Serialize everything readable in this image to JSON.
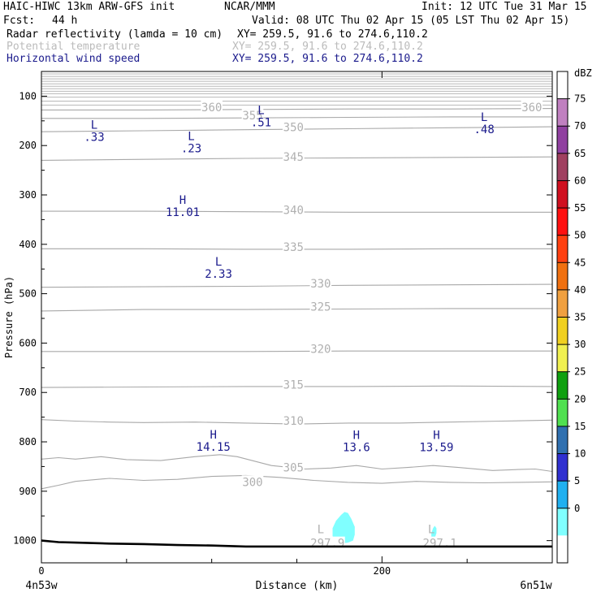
{
  "header": {
    "model": "HAIC-HIWC 13km ARW-GFS init",
    "org": "NCAR/MMM",
    "init": "Init: 12 UTC Tue 31 Mar 15",
    "fcst_label": "Fcst:",
    "fcst_value": "44 h",
    "valid": "Valid: 08 UTC Thu 02 Apr 15 (05 LST Thu 02 Apr 15)",
    "fields": [
      {
        "name": "Radar reflectivity (lamda = 10 cm)",
        "xy": "XY= 259.5, 91.6 to 274.6,110.2",
        "color": "#000000"
      },
      {
        "name": "Potential temperature",
        "xy": "XY= 259.5, 91.6 to 274.6,110.2",
        "color": "#bbbbbb"
      },
      {
        "name": "Horizontal wind speed",
        "xy": "XY= 259.5, 91.6 to 274.6,110.2",
        "color": "#1a1a8c"
      }
    ]
  },
  "chart_data": {
    "type": "cross-section",
    "xlabel": "Distance (km)",
    "ylabel": "Pressure (hPa)",
    "xlim": [
      0,
      300
    ],
    "ylim": [
      1045,
      50
    ],
    "x_ticks": [
      0,
      200
    ],
    "x_tick_labels": [
      "0",
      "200"
    ],
    "x_endpoint_labels": [
      "4n53w",
      "6n51w"
    ],
    "y_ticks": [
      100,
      200,
      300,
      400,
      500,
      600,
      700,
      800,
      900,
      1000
    ],
    "colorbar": {
      "unit": "dBZ",
      "levels": [
        75,
        70,
        65,
        60,
        55,
        50,
        45,
        40,
        35,
        30,
        25,
        20,
        15,
        10,
        5,
        0
      ],
      "colors": [
        "#ffffff",
        "#c080c0",
        "#9040a0",
        "#a04060",
        "#d01020",
        "#ff1010",
        "#ff4010",
        "#f07010",
        "#f0a040",
        "#f0d020",
        "#f0f050",
        "#10a010",
        "#50e050",
        "#3070b0",
        "#3030d0",
        "#20b0f0",
        "#80ffff",
        "#ffffff"
      ]
    },
    "theta_contours": [
      {
        "value": 300,
        "label": "300",
        "points": [
          [
            0,
            895
          ],
          [
            10,
            888
          ],
          [
            20,
            880
          ],
          [
            40,
            874
          ],
          [
            60,
            878
          ],
          [
            80,
            876
          ],
          [
            100,
            870
          ],
          [
            120,
            868
          ],
          [
            140,
            872
          ],
          [
            160,
            878
          ],
          [
            180,
            882
          ],
          [
            200,
            884
          ],
          [
            220,
            880
          ],
          [
            240,
            882
          ],
          [
            260,
            883
          ],
          [
            280,
            882
          ],
          [
            300,
            881
          ]
        ]
      },
      {
        "value": 305,
        "label": "305",
        "points": [
          [
            0,
            835
          ],
          [
            10,
            832
          ],
          [
            20,
            835
          ],
          [
            35,
            830
          ],
          [
            50,
            836
          ],
          [
            70,
            838
          ],
          [
            90,
            830
          ],
          [
            105,
            826
          ],
          [
            115,
            830
          ],
          [
            135,
            848
          ],
          [
            155,
            855
          ],
          [
            170,
            853
          ],
          [
            185,
            848
          ],
          [
            200,
            855
          ],
          [
            215,
            852
          ],
          [
            230,
            848
          ],
          [
            245,
            852
          ],
          [
            265,
            858
          ],
          [
            280,
            856
          ],
          [
            290,
            855
          ],
          [
            300,
            860
          ]
        ]
      },
      {
        "value": 310,
        "label": "310",
        "points": [
          [
            0,
            755
          ],
          [
            20,
            758
          ],
          [
            40,
            760
          ],
          [
            60,
            761
          ],
          [
            90,
            760
          ],
          [
            120,
            762
          ],
          [
            150,
            764
          ],
          [
            180,
            762
          ],
          [
            210,
            762
          ],
          [
            240,
            760
          ],
          [
            270,
            758
          ],
          [
            300,
            756
          ]
        ]
      },
      {
        "value": 315,
        "label": "315",
        "points": [
          [
            0,
            690
          ],
          [
            60,
            689
          ],
          [
            120,
            688
          ],
          [
            180,
            688
          ],
          [
            240,
            687
          ],
          [
            300,
            688
          ]
        ]
      },
      {
        "value": 320,
        "label": "320",
        "points": [
          [
            0,
            617
          ],
          [
            60,
            617
          ],
          [
            120,
            617
          ],
          [
            180,
            616
          ],
          [
            240,
            616
          ],
          [
            300,
            616
          ]
        ]
      },
      {
        "value": 325,
        "label": "325",
        "points": [
          [
            0,
            535
          ],
          [
            60,
            532
          ],
          [
            120,
            532
          ],
          [
            180,
            531
          ],
          [
            240,
            530
          ],
          [
            300,
            530
          ]
        ]
      },
      {
        "value": 330,
        "label": "330",
        "points": [
          [
            0,
            487
          ],
          [
            60,
            486
          ],
          [
            120,
            485
          ],
          [
            180,
            483
          ],
          [
            240,
            482
          ],
          [
            300,
            481
          ]
        ]
      },
      {
        "value": 335,
        "label": "335",
        "points": [
          [
            0,
            409
          ],
          [
            60,
            409
          ],
          [
            120,
            410
          ],
          [
            180,
            410
          ],
          [
            240,
            409
          ],
          [
            300,
            409
          ]
        ]
      },
      {
        "value": 340,
        "label": "340",
        "points": [
          [
            0,
            333
          ],
          [
            60,
            333
          ],
          [
            120,
            334
          ],
          [
            180,
            335
          ],
          [
            240,
            335
          ],
          [
            300,
            335
          ]
        ]
      },
      {
        "value": 345,
        "label": "345",
        "points": [
          [
            0,
            230
          ],
          [
            60,
            228
          ],
          [
            120,
            226
          ],
          [
            180,
            225
          ],
          [
            240,
            224
          ],
          [
            300,
            223
          ]
        ]
      },
      {
        "value": 350,
        "label": "350",
        "points": [
          [
            0,
            172
          ],
          [
            60,
            170
          ],
          [
            120,
            168
          ],
          [
            180,
            166
          ],
          [
            240,
            164
          ],
          [
            300,
            162
          ]
        ]
      },
      {
        "value": 355,
        "label": "355",
        "points": [
          [
            0,
            145
          ],
          [
            60,
            145
          ],
          [
            120,
            144
          ],
          [
            180,
            143
          ],
          [
            240,
            142
          ],
          [
            300,
            142
          ]
        ]
      },
      {
        "value": 360,
        "label": "360",
        "points": [
          [
            0,
            128
          ],
          [
            60,
            128
          ],
          [
            120,
            127
          ],
          [
            180,
            126
          ],
          [
            240,
            126
          ],
          [
            300,
            125
          ]
        ]
      }
    ],
    "theta_labels": [
      {
        "text": "360",
        "x": 100,
        "y": 122
      },
      {
        "text": "355",
        "x": 124,
        "y": 139
      },
      {
        "text": "350",
        "x": 148,
        "y": 163
      },
      {
        "text": "345",
        "x": 148,
        "y": 223
      },
      {
        "text": "340",
        "x": 148,
        "y": 330
      },
      {
        "text": "335",
        "x": 148,
        "y": 405
      },
      {
        "text": "330",
        "x": 164,
        "y": 479
      },
      {
        "text": "325",
        "x": 164,
        "y": 526
      },
      {
        "text": "320",
        "x": 164,
        "y": 612
      },
      {
        "text": "315",
        "x": 148,
        "y": 684
      },
      {
        "text": "310",
        "x": 148,
        "y": 757
      },
      {
        "text": "305",
        "x": 148,
        "y": 852
      },
      {
        "text": "300",
        "x": 124,
        "y": 881
      },
      {
        "text": "360",
        "x": 288,
        "y": 122
      },
      {
        "text": "297.9",
        "x": 168,
        "y": 1005
      },
      {
        "text": "297.1",
        "x": 234,
        "y": 1005
      }
    ],
    "upper_theta_lines_hpa": [
      55,
      60,
      65,
      70,
      75,
      80,
      85,
      90,
      95,
      102,
      110,
      118
    ],
    "wind_extrema": [
      {
        "kind": "L",
        "value": ".33",
        "x": 31,
        "y": 166
      },
      {
        "kind": "L",
        "value": ".23",
        "x": 88,
        "y": 189
      },
      {
        "kind": "L",
        "value": ".51",
        "x": 129,
        "y": 136
      },
      {
        "kind": "L",
        "value": ".48",
        "x": 260,
        "y": 150
      },
      {
        "kind": "H",
        "value": "11.01",
        "x": 83,
        "y": 318
      },
      {
        "kind": "L",
        "value": "2.33",
        "x": 104,
        "y": 443
      },
      {
        "kind": "H",
        "value": "14.15",
        "x": 101,
        "y": 793
      },
      {
        "kind": "H",
        "value": "13.6",
        "x": 185,
        "y": 794
      },
      {
        "kind": "H",
        "value": "13.59",
        "x": 232,
        "y": 794
      }
    ],
    "pressure_minima": [
      {
        "kind": "L",
        "x": 164,
        "y": 985
      },
      {
        "kind": "L",
        "x": 229,
        "y": 985
      }
    ],
    "reflectivity_cells": [
      {
        "dbz_min": 5,
        "points": [
          [
            172,
            1003
          ],
          [
            171,
            990
          ],
          [
            171,
            975
          ],
          [
            173,
            960
          ],
          [
            176,
            948
          ],
          [
            178,
            942
          ],
          [
            180,
            944
          ],
          [
            182,
            956
          ],
          [
            184,
            972
          ],
          [
            184,
            988
          ],
          [
            183,
            1000
          ],
          [
            180,
            1004
          ],
          [
            176,
            1006
          ]
        ]
      },
      {
        "dbz_min": 5,
        "points": [
          [
            229,
            995
          ],
          [
            229,
            985
          ],
          [
            230,
            975
          ],
          [
            231,
            970
          ],
          [
            232,
            975
          ],
          [
            232,
            985
          ],
          [
            231,
            995
          ],
          [
            230,
            999
          ]
        ]
      }
    ],
    "terrain": {
      "points": [
        [
          0,
          1000
        ],
        [
          10,
          1003
        ],
        [
          20,
          1004
        ],
        [
          40,
          1006
        ],
        [
          60,
          1007
        ],
        [
          80,
          1009
        ],
        [
          100,
          1010
        ],
        [
          120,
          1012
        ],
        [
          140,
          1012
        ],
        [
          180,
          1012
        ],
        [
          220,
          1012
        ],
        [
          260,
          1012
        ],
        [
          300,
          1012
        ]
      ]
    }
  }
}
